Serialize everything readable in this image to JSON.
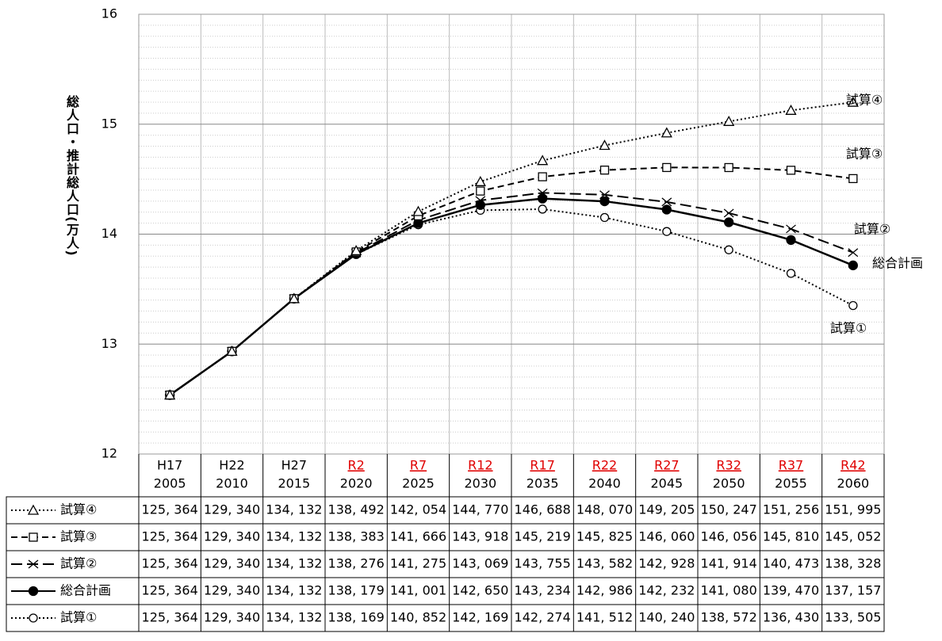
{
  "chart_data": {
    "type": "line",
    "y_label": "総人口・推計総人口(万人)",
    "categories": [
      "H17",
      "H22",
      "H27",
      "R2",
      "R7",
      "R12",
      "R17",
      "R22",
      "R27",
      "R32",
      "R37",
      "R42"
    ],
    "years": [
      "2005",
      "2010",
      "2015",
      "2020",
      "2025",
      "2030",
      "2035",
      "2040",
      "2045",
      "2050",
      "2055",
      "2060"
    ],
    "category_colors": [
      "#000000",
      "#000000",
      "#000000",
      "#e00000",
      "#e00000",
      "#e00000",
      "#e00000",
      "#e00000",
      "#e00000",
      "#e00000",
      "#e00000",
      "#e00000"
    ],
    "ylim": [
      12,
      16
    ],
    "yticks": [
      12,
      13,
      14,
      15,
      16
    ],
    "grid": true,
    "series": [
      {
        "name": "試算④",
        "color": "#000000",
        "dash": "dotted",
        "marker": "triangle",
        "values": [
          12.5364,
          12.934,
          13.4132,
          13.8492,
          14.2054,
          14.477,
          14.6688,
          14.807,
          14.9205,
          15.0247,
          15.1256,
          15.1995
        ],
        "value_labels": [
          "125, 364",
          "129, 340",
          "134, 132",
          "138, 492",
          "142, 054",
          "144, 770",
          "146, 688",
          "148, 070",
          "149, 205",
          "150, 247",
          "151, 256",
          "151, 995"
        ]
      },
      {
        "name": "試算③",
        "color": "#000000",
        "dash": "dashed",
        "marker": "square",
        "values": [
          12.5364,
          12.934,
          13.4132,
          13.8383,
          14.1666,
          14.3918,
          14.5219,
          14.5825,
          14.606,
          14.6056,
          14.581,
          14.5052
        ],
        "value_labels": [
          "125, 364",
          "129, 340",
          "134, 132",
          "138, 383",
          "141, 666",
          "143, 918",
          "145, 219",
          "145, 825",
          "146, 060",
          "146, 056",
          "145, 810",
          "145, 052"
        ]
      },
      {
        "name": "試算②",
        "color": "#000000",
        "dash": "longdash",
        "marker": "x",
        "values": [
          12.5364,
          12.934,
          13.4132,
          13.8276,
          14.1275,
          14.3069,
          14.3755,
          14.3582,
          14.2928,
          14.1914,
          14.0473,
          13.8328
        ],
        "value_labels": [
          "125, 364",
          "129, 340",
          "134, 132",
          "138, 276",
          "141, 275",
          "143, 069",
          "143, 755",
          "143, 582",
          "142, 928",
          "141, 914",
          "140, 473",
          "138, 328"
        ]
      },
      {
        "name": "総合計画",
        "color": "#000000",
        "dash": "solid",
        "marker": "filled-circle",
        "values": [
          12.5364,
          12.934,
          13.4132,
          13.8179,
          14.1001,
          14.265,
          14.3234,
          14.2986,
          14.2232,
          14.108,
          13.947,
          13.7157
        ],
        "value_labels": [
          "125, 364",
          "129, 340",
          "134, 132",
          "138, 179",
          "141, 001",
          "142, 650",
          "143, 234",
          "142, 986",
          "142, 232",
          "141, 080",
          "139, 470",
          "137, 157"
        ]
      },
      {
        "name": "試算①",
        "color": "#000000",
        "dash": "dotted",
        "marker": "circle",
        "values": [
          12.5364,
          12.934,
          13.4132,
          13.8169,
          14.0852,
          14.2169,
          14.2274,
          14.1512,
          14.024,
          13.8572,
          13.643,
          13.3505
        ],
        "value_labels": [
          "125, 364",
          "129, 340",
          "134, 132",
          "138, 169",
          "140, 852",
          "142, 169",
          "142, 274",
          "141, 512",
          "140, 240",
          "138, 572",
          "136, 430",
          "133, 505"
        ]
      }
    ]
  }
}
